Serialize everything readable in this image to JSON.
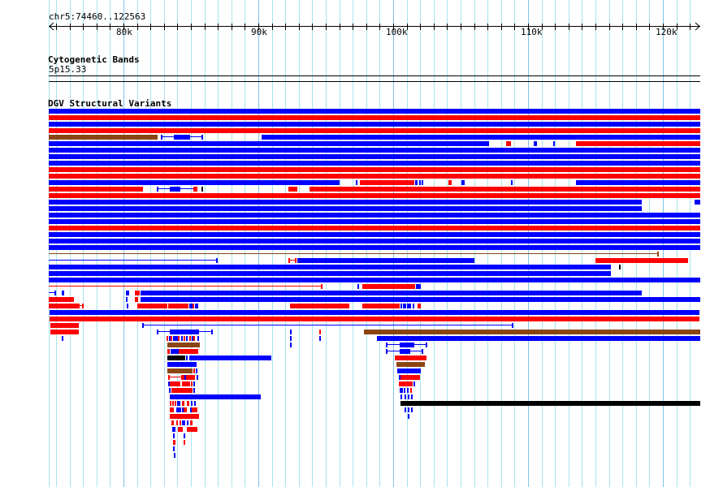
{
  "ruler": {
    "location": "chr5:74460..122563",
    "start_kb": 74.46,
    "end_kb": 122.563,
    "view_end_kb": 122.77,
    "tick_labels": [
      {
        "kb": 80,
        "label": "80k"
      },
      {
        "kb": 90,
        "label": "90k"
      },
      {
        "kb": 100,
        "label": "100k"
      },
      {
        "kb": 110,
        "label": "110k"
      },
      {
        "kb": 120,
        "label": "120k"
      }
    ]
  },
  "cytoband_track": {
    "title": "Cytogenetic Bands",
    "band": "5p15.33"
  },
  "dgv_track": {
    "title": "DGV Structural Variants",
    "colors": {
      "b": "#0000ff",
      "r": "#ff0000",
      "n": "#8b4513",
      "k": "#000000"
    },
    "rows": [
      [
        [
          74.46,
          122.77,
          "b"
        ]
      ],
      [
        [
          74.46,
          122.77,
          "r"
        ]
      ],
      [
        [
          74.46,
          122.77,
          "b"
        ]
      ],
      [
        [
          74.46,
          122.77,
          "r"
        ]
      ],
      [
        [
          74.46,
          82.53,
          "n"
        ],
        [
          82.77,
          85.9,
          "b",
          "L"
        ],
        [
          83.74,
          84.94,
          "b"
        ],
        [
          90.24,
          122.77,
          "b"
        ]
      ],
      [
        [
          74.46,
          107.11,
          "b"
        ],
        [
          108.38,
          108.74,
          "r"
        ],
        [
          110.42,
          110.66,
          "b"
        ],
        [
          111.87,
          111.99,
          "b"
        ],
        [
          113.56,
          122.77,
          "r"
        ]
      ],
      [
        [
          74.46,
          122.77,
          "b"
        ]
      ],
      [
        [
          74.46,
          122.77,
          "b"
        ]
      ],
      [
        [
          74.46,
          122.77,
          "b"
        ]
      ],
      [
        [
          74.46,
          122.77,
          "r"
        ]
      ],
      [
        [
          74.46,
          122.77,
          "r"
        ]
      ],
      [
        [
          74.46,
          96.03,
          "b"
        ],
        [
          97.23,
          97.35,
          "b"
        ],
        [
          97.53,
          101.09,
          "r"
        ],
        [
          101.09,
          101.33,
          "r",
          "L"
        ],
        [
          101.33,
          101.57,
          "r"
        ],
        [
          101.63,
          101.81,
          "b"
        ],
        [
          101.93,
          102.05,
          "b"
        ],
        [
          102.11,
          102.23,
          "b"
        ],
        [
          104.1,
          104.34,
          "r"
        ],
        [
          105.06,
          105.3,
          "b"
        ],
        [
          108.74,
          108.86,
          "b"
        ],
        [
          113.56,
          122.77,
          "b"
        ]
      ],
      [
        [
          74.46,
          81.45,
          "r"
        ],
        [
          82.47,
          85.3,
          "b",
          "L"
        ],
        [
          83.44,
          84.22,
          "b"
        ],
        [
          85.18,
          85.48,
          "r"
        ],
        [
          85.79,
          85.9,
          "k"
        ],
        [
          92.23,
          92.89,
          "r"
        ],
        [
          93.8,
          122.77,
          "r"
        ]
      ],
      [
        [
          74.46,
          122.77,
          "r"
        ]
      ],
      [
        [
          74.46,
          118.44,
          "b"
        ],
        [
          122.35,
          122.77,
          "b"
        ]
      ],
      [
        [
          74.46,
          118.44,
          "b"
        ]
      ],
      [
        [
          74.46,
          122.77,
          "b"
        ]
      ],
      [
        [
          74.46,
          122.77,
          "b"
        ]
      ],
      [
        [
          74.46,
          122.77,
          "r"
        ]
      ],
      [
        [
          74.46,
          122.77,
          "b"
        ]
      ],
      [
        [
          74.46,
          122.77,
          "b"
        ]
      ],
      [
        [
          74.46,
          122.77,
          "b"
        ]
      ],
      [
        [
          74.4,
          119.7,
          "n",
          "L"
        ]
      ],
      [
        [
          74.4,
          86.99,
          "b",
          "L"
        ],
        [
          92.23,
          92.83,
          "r",
          "L"
        ],
        [
          92.71,
          92.83,
          "r"
        ],
        [
          92.89,
          106.03,
          "b"
        ],
        [
          115.0,
          121.87,
          "r"
        ]
      ],
      [
        [
          74.46,
          116.15,
          "b"
        ],
        [
          116.75,
          116.87,
          "k"
        ]
      ],
      [
        [
          74.46,
          116.15,
          "b"
        ]
      ],
      [
        [
          74.46,
          122.77,
          "b"
        ]
      ],
      [
        [
          74.4,
          94.76,
          "r",
          "L"
        ],
        [
          97.35,
          97.47,
          "b"
        ],
        [
          97.71,
          101.45,
          "r"
        ],
        [
          101.45,
          101.63,
          "r",
          "L"
        ],
        [
          101.69,
          102.05,
          "b"
        ]
      ],
      [
        [
          74.4,
          75.0,
          "b",
          "L"
        ],
        [
          75.42,
          75.6,
          "b"
        ],
        [
          80.18,
          80.42,
          "b"
        ],
        [
          80.85,
          81.21,
          "r",
          "L"
        ],
        [
          80.85,
          81.09,
          "r"
        ],
        [
          81.27,
          118.44,
          "b"
        ]
      ],
      [
        [
          74.46,
          76.33,
          "r"
        ],
        [
          80.18,
          80.3,
          "b"
        ],
        [
          80.85,
          81.09,
          "r"
        ],
        [
          81.27,
          122.77,
          "b"
        ]
      ],
      [
        [
          74.46,
          77.05,
          "r",
          "L"
        ],
        [
          74.58,
          76.75,
          "r"
        ],
        [
          80.24,
          80.36,
          "b"
        ],
        [
          81.03,
          83.26,
          "r"
        ],
        [
          83.32,
          84.82,
          "r"
        ],
        [
          84.88,
          85.12,
          "b"
        ],
        [
          85.12,
          85.24,
          "r"
        ],
        [
          85.3,
          85.54,
          "b"
        ],
        [
          92.35,
          96.75,
          "r"
        ],
        [
          97.71,
          100.48,
          "r"
        ],
        [
          100.54,
          100.66,
          "b"
        ],
        [
          100.72,
          100.96,
          "b"
        ],
        [
          101.02,
          101.33,
          "b"
        ],
        [
          101.45,
          101.57,
          "b"
        ],
        [
          101.81,
          102.05,
          "r"
        ]
      ],
      [
        [
          74.52,
          122.71,
          "b"
        ]
      ],
      [
        [
          74.52,
          122.71,
          "r"
        ]
      ],
      [
        [
          74.58,
          76.69,
          "r"
        ],
        [
          81.39,
          108.92,
          "b",
          "L"
        ]
      ],
      [
        [
          74.58,
          76.69,
          "r"
        ],
        [
          82.47,
          86.63,
          "b",
          "L"
        ],
        [
          83.44,
          85.6,
          "b"
        ],
        [
          92.35,
          92.47,
          "b"
        ],
        [
          94.52,
          94.64,
          "r"
        ],
        [
          97.83,
          122.77,
          "n"
        ]
      ],
      [
        [
          75.42,
          75.54,
          "b"
        ],
        [
          83.19,
          83.32,
          "r"
        ],
        [
          83.38,
          83.44,
          "b"
        ],
        [
          83.5,
          83.62,
          "r"
        ],
        [
          83.68,
          84.04,
          "b"
        ],
        [
          84.04,
          84.16,
          "r"
        ],
        [
          84.28,
          84.4,
          "b"
        ],
        [
          84.46,
          84.58,
          "r"
        ],
        [
          84.64,
          84.76,
          "b"
        ],
        [
          84.88,
          85.0,
          "r"
        ],
        [
          85.06,
          85.12,
          "b"
        ],
        [
          85.18,
          85.3,
          "r"
        ],
        [
          85.48,
          85.6,
          "b"
        ],
        [
          92.35,
          92.47,
          "b"
        ],
        [
          94.52,
          94.64,
          "b"
        ],
        [
          98.8,
          122.77,
          "b"
        ]
      ],
      [
        [
          83.26,
          85.66,
          "n"
        ],
        [
          92.35,
          92.47,
          "b"
        ],
        [
          99.46,
          102.53,
          "b",
          "L"
        ],
        [
          100.48,
          101.57,
          "b"
        ]
      ],
      [
        [
          83.26,
          83.44,
          "r"
        ],
        [
          83.5,
          84.1,
          "b"
        ],
        [
          84.1,
          85.54,
          "r"
        ],
        [
          99.46,
          102.23,
          "b",
          "L"
        ],
        [
          100.48,
          101.27,
          "b"
        ]
      ],
      [
        [
          83.26,
          84.58,
          "k"
        ],
        [
          84.64,
          84.76,
          "b"
        ],
        [
          84.88,
          90.97,
          "b"
        ],
        [
          100.12,
          102.47,
          "r"
        ]
      ],
      [
        [
          83.26,
          85.42,
          "b"
        ],
        [
          100.24,
          102.35,
          "n"
        ]
      ],
      [
        [
          83.26,
          85.12,
          "n"
        ],
        [
          85.18,
          85.3,
          "r"
        ],
        [
          85.36,
          85.48,
          "b"
        ],
        [
          100.3,
          102.05,
          "b"
        ]
      ],
      [
        [
          83.32,
          84.4,
          "r",
          "L"
        ],
        [
          84.4,
          84.52,
          "r"
        ],
        [
          84.52,
          84.64,
          "b"
        ],
        [
          84.64,
          85.3,
          "r"
        ],
        [
          85.42,
          85.48,
          "b"
        ],
        [
          100.42,
          100.54,
          "b"
        ],
        [
          100.54,
          101.99,
          "r"
        ]
      ],
      [
        [
          83.32,
          83.44,
          "b"
        ],
        [
          83.44,
          84.22,
          "r"
        ],
        [
          84.34,
          84.94,
          "r"
        ],
        [
          85.0,
          85.06,
          "r"
        ],
        [
          85.18,
          85.3,
          "b"
        ],
        [
          100.42,
          101.45,
          "r"
        ],
        [
          101.51,
          101.63,
          "b"
        ]
      ],
      [
        [
          83.38,
          83.5,
          "b"
        ],
        [
          83.56,
          85.12,
          "r"
        ],
        [
          85.18,
          85.3,
          "b"
        ],
        [
          100.48,
          100.72,
          "b"
        ],
        [
          100.78,
          100.9,
          "b"
        ],
        [
          101.02,
          101.15,
          "b"
        ],
        [
          101.27,
          101.39,
          "r"
        ]
      ],
      [
        [
          83.44,
          90.18,
          "b"
        ],
        [
          100.54,
          100.66,
          "b"
        ],
        [
          100.84,
          100.96,
          "b"
        ],
        [
          101.09,
          101.21,
          "b"
        ],
        [
          101.33,
          101.45,
          "b"
        ]
      ],
      [
        [
          83.44,
          83.5,
          "r"
        ],
        [
          83.62,
          83.68,
          "r"
        ],
        [
          83.8,
          83.92,
          "r"
        ],
        [
          83.98,
          84.22,
          "b"
        ],
        [
          84.34,
          84.52,
          "r"
        ],
        [
          84.7,
          84.88,
          "r"
        ],
        [
          85.0,
          85.06,
          "b"
        ],
        [
          85.24,
          85.36,
          "b"
        ],
        [
          100.54,
          122.77,
          "k"
        ]
      ],
      [
        [
          83.44,
          83.74,
          "r"
        ],
        [
          83.92,
          84.28,
          "b"
        ],
        [
          84.34,
          84.4,
          "b"
        ],
        [
          84.46,
          84.7,
          "r"
        ],
        [
          84.94,
          85.06,
          "b"
        ],
        [
          85.06,
          85.48,
          "r"
        ],
        [
          100.84,
          100.96,
          "b"
        ],
        [
          101.09,
          101.21,
          "b"
        ],
        [
          101.33,
          101.45,
          "b"
        ]
      ],
      [
        [
          83.44,
          85.6,
          "r"
        ],
        [
          101.09,
          101.21,
          "b"
        ]
      ],
      [
        [
          83.56,
          83.74,
          "r"
        ],
        [
          83.92,
          84.04,
          "r"
        ],
        [
          84.16,
          84.22,
          "r"
        ],
        [
          84.34,
          84.58,
          "b"
        ],
        [
          84.7,
          84.82,
          "b"
        ],
        [
          84.94,
          85.12,
          "r"
        ]
      ],
      [
        [
          83.62,
          83.86,
          "b"
        ],
        [
          84.04,
          84.4,
          "r"
        ],
        [
          84.7,
          85.48,
          "r"
        ]
      ],
      [
        [
          83.68,
          83.8,
          "b"
        ],
        [
          84.46,
          84.58,
          "b"
        ]
      ],
      [
        [
          83.68,
          83.86,
          "r"
        ],
        [
          84.46,
          84.58,
          "r"
        ]
      ],
      [
        [
          83.68,
          83.8,
          "b"
        ]
      ],
      [
        [
          83.74,
          83.86,
          "b"
        ]
      ]
    ]
  }
}
